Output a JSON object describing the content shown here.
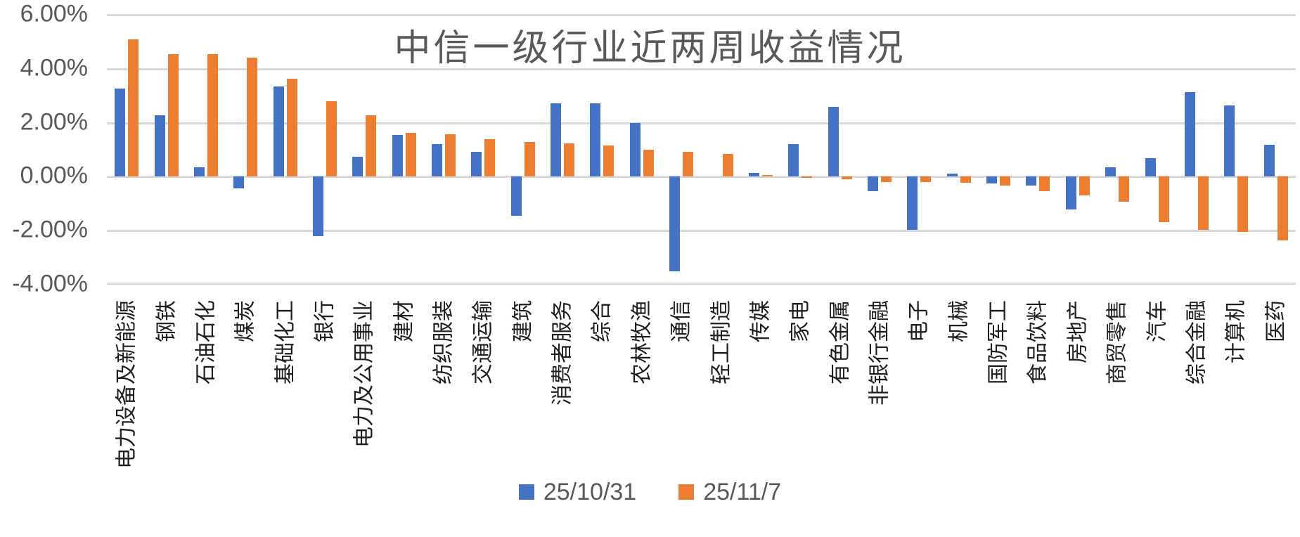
{
  "chart_data": {
    "type": "bar",
    "title": "中信一级行业近两周收益情况",
    "categories": [
      "电力设备及新能源",
      "钢铁",
      "石油石化",
      "煤炭",
      "基础化工",
      "银行",
      "电力及公用事业",
      "建材",
      "纺织服装",
      "交通运输",
      "建筑",
      "消费者服务",
      "综合",
      "农林牧渔",
      "通信",
      "轻工制造",
      "传媒",
      "家电",
      "有色金属",
      "非银行金融",
      "电子",
      "机械",
      "国防军工",
      "食品饮料",
      "房地产",
      "商贸零售",
      "汽车",
      "综合金融",
      "计算机",
      "医药"
    ],
    "series": [
      {
        "name": "25/10/31",
        "color": "#4472C4",
        "values": [
          3.27,
          2.27,
          0.36,
          -0.44,
          3.34,
          -2.2,
          0.75,
          1.55,
          1.21,
          0.91,
          -1.46,
          2.72,
          2.73,
          1.98,
          -3.5,
          0.0,
          0.14,
          1.2,
          2.6,
          -0.54,
          -1.96,
          0.12,
          -0.24,
          -0.32,
          -1.22,
          0.35,
          0.68,
          3.13,
          2.64,
          1.18
        ]
      },
      {
        "name": "25/11/7",
        "color": "#ED7D31",
        "values": [
          5.1,
          4.55,
          4.54,
          4.42,
          3.62,
          2.8,
          2.28,
          1.62,
          1.56,
          1.39,
          1.29,
          1.24,
          1.15,
          1.0,
          0.91,
          0.84,
          0.05,
          -0.05,
          -0.1,
          -0.19,
          -0.19,
          -0.23,
          -0.33,
          -0.53,
          -0.69,
          -0.94,
          -1.67,
          -1.97,
          -2.06,
          -2.37
        ]
      }
    ],
    "y_ticks": [
      "6.00%",
      "4.00%",
      "2.00%",
      "0.00%",
      "-2.00%",
      "-4.00%"
    ],
    "ylim": [
      -4,
      6
    ],
    "y_unit": "%",
    "grid": "horizontal",
    "legend_position": "bottom"
  },
  "colors": {
    "background": "#ffffff",
    "gridline": "#d9d9d9",
    "title_text": "#595959",
    "axis_tick_text": "#595959",
    "category_text": "#1f1f1f",
    "series_blue": "#4472C4",
    "series_orange": "#ED7D31"
  }
}
